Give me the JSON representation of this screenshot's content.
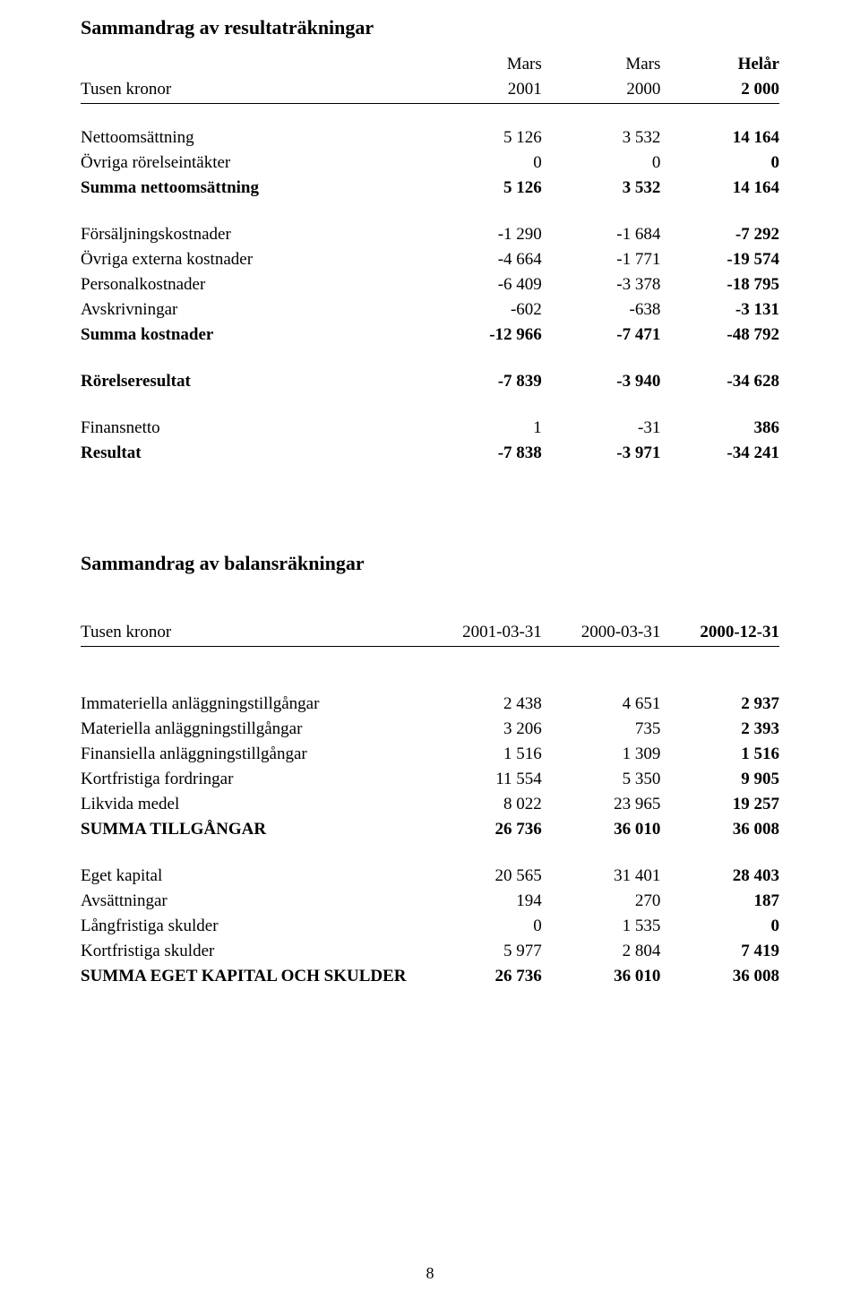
{
  "pageNumber": "8",
  "section1": {
    "title": "Sammandrag av resultaträkningar",
    "headerTop": {
      "c1": "Mars",
      "c2": "Mars",
      "c3": "Helår"
    },
    "headerSub": {
      "label": "Tusen kronor",
      "c1": "2001",
      "c2": "2000",
      "c3": "2 000"
    },
    "rows": [
      {
        "type": "spacer"
      },
      {
        "label": "Nettoomsättning",
        "c1": "5 126",
        "c2": "3 532",
        "c3": "14 164"
      },
      {
        "label": "Övriga rörelseintäkter",
        "c1": "0",
        "c2": "0",
        "c3": "0"
      },
      {
        "label": "Summa nettoomsättning",
        "c1": "5 126",
        "c2": "3 532",
        "c3": "14 164",
        "bold": true
      },
      {
        "type": "spacer"
      },
      {
        "label": "Försäljningskostnader",
        "c1": "-1 290",
        "c2": "-1 684",
        "c3": "-7 292"
      },
      {
        "label": "Övriga externa kostnader",
        "c1": "-4 664",
        "c2": "-1 771",
        "c3": "-19 574"
      },
      {
        "label": "Personalkostnader",
        "c1": "-6 409",
        "c2": "-3 378",
        "c3": "-18 795"
      },
      {
        "label": "Avskrivningar",
        "c1": "-602",
        "c2": "-638",
        "c3": "-3 131"
      },
      {
        "label": "Summa kostnader",
        "c1": "-12 966",
        "c2": "-7 471",
        "c3": "-48 792",
        "bold": true
      },
      {
        "type": "spacer"
      },
      {
        "label": "Rörelseresultat",
        "c1": "-7 839",
        "c2": "-3 940",
        "c3": "-34 628",
        "bold": true
      },
      {
        "type": "spacer"
      },
      {
        "label": "Finansnetto",
        "c1": "1",
        "c2": "-31",
        "c3": "386"
      },
      {
        "label": "Resultat",
        "c1": "-7 838",
        "c2": "-3 971",
        "c3": "-34 241",
        "bold": true
      }
    ]
  },
  "section2": {
    "title": "Sammandrag av balansräkningar",
    "header": {
      "label": "Tusen kronor",
      "c1": "2001-03-31",
      "c2": "2000-03-31",
      "c3": "2000-12-31"
    },
    "rows": [
      {
        "type": "spacer-lg"
      },
      {
        "label": "Immateriella anläggningstillgångar",
        "c1": "2 438",
        "c2": "4 651",
        "c3": "2 937"
      },
      {
        "label": "Materiella anläggningstillgångar",
        "c1": "3 206",
        "c2": "735",
        "c3": "2 393"
      },
      {
        "label": "Finansiella anläggningstillgångar",
        "c1": "1 516",
        "c2": "1 309",
        "c3": "1 516"
      },
      {
        "label": "Kortfristiga fordringar",
        "c1": "11 554",
        "c2": "5 350",
        "c3": "9 905"
      },
      {
        "label": "Likvida medel",
        "c1": "8 022",
        "c2": "23 965",
        "c3": "19 257"
      },
      {
        "label": "SUMMA TILLGÅNGAR",
        "c1": "26 736",
        "c2": "36 010",
        "c3": "36 008",
        "bold": true
      },
      {
        "type": "spacer"
      },
      {
        "label": "Eget kapital",
        "c1": "20 565",
        "c2": "31 401",
        "c3": "28 403"
      },
      {
        "label": "Avsättningar",
        "c1": "194",
        "c2": "270",
        "c3": "187"
      },
      {
        "label": "Långfristiga skulder",
        "c1": "0",
        "c2": "1 535",
        "c3": "0"
      },
      {
        "label": "Kortfristiga skulder",
        "c1": "5 977",
        "c2": "2 804",
        "c3": "7 419"
      },
      {
        "label": "SUMMA EGET KAPITAL OCH SKULDER",
        "c1": "26 736",
        "c2": "36 010",
        "c3": "36 008",
        "bold": true
      }
    ]
  }
}
